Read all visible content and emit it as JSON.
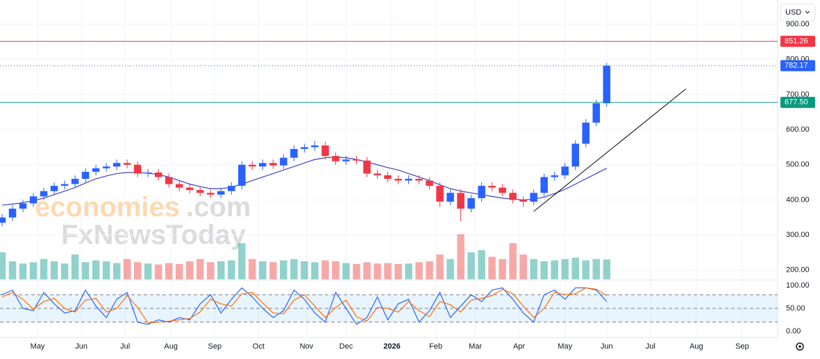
{
  "currency": "USD",
  "watermark": [
    "economies",
    ".com",
    "FxNewsToday"
  ],
  "chart_data": {
    "type": "candlestick",
    "xlim": [
      0,
      373
    ],
    "xticks": [
      {
        "value": 18,
        "label": "May"
      },
      {
        "value": 39,
        "label": "Jun"
      },
      {
        "value": 60,
        "label": "Jul"
      },
      {
        "value": 82,
        "label": "Aug"
      },
      {
        "value": 103,
        "label": "Sep"
      },
      {
        "value": 124,
        "label": "Oct"
      },
      {
        "value": 147,
        "label": "Nov"
      },
      {
        "value": 166,
        "label": "Dec"
      },
      {
        "value": 188,
        "label": "2026"
      },
      {
        "value": 209,
        "label": "Feb"
      },
      {
        "value": 228,
        "label": "Mar"
      },
      {
        "value": 249,
        "label": "Apr"
      },
      {
        "value": 271,
        "label": "May"
      },
      {
        "value": 291,
        "label": "Jun"
      },
      {
        "value": 312,
        "label": "Jul"
      },
      {
        "value": 334,
        "label": "Aug"
      },
      {
        "value": 356,
        "label": "Sep"
      }
    ],
    "ylim": [
      174,
      969
    ],
    "yticks": [
      {
        "value": 900,
        "label": "900.00"
      },
      {
        "value": 800,
        "label": "800.00"
      },
      {
        "value": 700,
        "label": "700.00"
      },
      {
        "value": 600,
        "label": "600.00"
      },
      {
        "value": 500,
        "label": "500.00"
      },
      {
        "value": 400,
        "label": "400.00"
      },
      {
        "value": 300,
        "label": "300.00"
      },
      {
        "value": 200,
        "label": "200.00"
      }
    ],
    "up_color": "#2962ff",
    "down_color": "#f23645",
    "candles": {
      "x": [
        1,
        6,
        11,
        16,
        21,
        26,
        31,
        36,
        41,
        46,
        51,
        56,
        61,
        66,
        71,
        76,
        81,
        86,
        91,
        96,
        101,
        106,
        111,
        116,
        121,
        126,
        131,
        136,
        141,
        146,
        151,
        156,
        161,
        166,
        171,
        176,
        181,
        186,
        191,
        196,
        201,
        206,
        211,
        216,
        221,
        226,
        231,
        236,
        241,
        246,
        251,
        256,
        261,
        266,
        271,
        276,
        281,
        286,
        291
      ],
      "open": [
        335,
        350,
        375,
        390,
        410,
        425,
        440,
        445,
        460,
        480,
        490,
        495,
        505,
        500,
        475,
        478,
        465,
        445,
        435,
        428,
        420,
        415,
        425,
        440,
        500,
        495,
        505,
        498,
        520,
        545,
        550,
        555,
        525,
        510,
        515,
        512,
        475,
        470,
        460,
        455,
        460,
        455,
        440,
        395,
        420,
        375,
        405,
        440,
        435,
        420,
        400,
        395,
        420,
        465,
        470,
        495,
        560,
        620,
        675
      ],
      "high": [
        360,
        385,
        400,
        420,
        435,
        450,
        455,
        470,
        490,
        500,
        505,
        515,
        515,
        510,
        488,
        488,
        475,
        455,
        445,
        438,
        430,
        435,
        450,
        510,
        510,
        515,
        515,
        530,
        555,
        560,
        568,
        565,
        535,
        525,
        525,
        522,
        485,
        480,
        470,
        470,
        470,
        465,
        450,
        430,
        430,
        415,
        450,
        450,
        445,
        430,
        410,
        430,
        475,
        480,
        505,
        570,
        630,
        685,
        790
      ],
      "low": [
        325,
        340,
        365,
        380,
        400,
        415,
        430,
        435,
        450,
        470,
        480,
        485,
        490,
        465,
        465,
        455,
        435,
        425,
        418,
        410,
        405,
        405,
        415,
        430,
        485,
        485,
        488,
        488,
        510,
        535,
        540,
        515,
        500,
        500,
        502,
        465,
        460,
        450,
        445,
        445,
        445,
        430,
        380,
        385,
        340,
        365,
        395,
        425,
        410,
        390,
        380,
        385,
        410,
        455,
        460,
        485,
        550,
        610,
        665
      ],
      "close": [
        350,
        375,
        390,
        410,
        425,
        440,
        445,
        460,
        480,
        490,
        495,
        505,
        500,
        475,
        478,
        465,
        445,
        435,
        428,
        420,
        415,
        425,
        440,
        500,
        495,
        505,
        498,
        520,
        545,
        550,
        555,
        525,
        510,
        515,
        512,
        475,
        470,
        460,
        455,
        460,
        455,
        440,
        395,
        420,
        375,
        405,
        440,
        435,
        420,
        400,
        395,
        420,
        465,
        470,
        495,
        560,
        620,
        675,
        782
      ],
      "volume": [
        60,
        40,
        35,
        38,
        45,
        40,
        35,
        55,
        38,
        42,
        40,
        36,
        45,
        38,
        35,
        33,
        36,
        34,
        40,
        45,
        38,
        40,
        42,
        80,
        45,
        40,
        38,
        42,
        45,
        40,
        38,
        42,
        40,
        36,
        34,
        38,
        35,
        36,
        34,
        35,
        38,
        40,
        55,
        45,
        100,
        60,
        65,
        50,
        45,
        80,
        55,
        45,
        40,
        42,
        45,
        48,
        42,
        45,
        44
      ]
    },
    "moving_average": {
      "color": "#3f3fbf",
      "values": [
        385,
        388,
        392,
        398,
        405,
        415,
        425,
        435,
        448,
        460,
        468,
        475,
        478,
        478,
        476,
        472,
        465,
        455,
        445,
        438,
        432,
        432,
        436,
        445,
        455,
        465,
        475,
        485,
        495,
        505,
        515,
        520,
        522,
        520,
        515,
        508,
        500,
        492,
        485,
        475,
        465,
        455,
        443,
        432,
        425,
        420,
        415,
        410,
        405,
        402,
        400,
        402,
        408,
        418,
        430,
        445,
        460,
        475,
        490
      ]
    },
    "levels": [
      {
        "value": 851.26,
        "label": "851.26",
        "color": "#f23645",
        "dotted": false
      },
      {
        "value": 782.17,
        "label": "782.17",
        "color": "#2962ff",
        "dotted": true
      },
      {
        "value": 677.5,
        "label": "677.50",
        "color": "#089981",
        "dotted": false
      }
    ],
    "trendline": {
      "x": [
        256,
        329
      ],
      "y": [
        367,
        716
      ],
      "color": "#000000"
    },
    "stochastic": {
      "ylim": [
        -10.6,
        110.6
      ],
      "yticks": [
        {
          "value": 100,
          "label": "100.00"
        },
        {
          "value": 50,
          "label": "50.00"
        },
        {
          "value": 0,
          "label": "0.00"
        }
      ],
      "bands": [
        80,
        50,
        20
      ],
      "series": [
        {
          "color": "#2962ff",
          "values": [
            80,
            90,
            50,
            45,
            85,
            60,
            40,
            45,
            90,
            55,
            30,
            70,
            85,
            20,
            15,
            25,
            20,
            30,
            25,
            60,
            80,
            40,
            70,
            95,
            75,
            50,
            30,
            45,
            90,
            70,
            40,
            20,
            85,
            50,
            15,
            30,
            75,
            25,
            60,
            70,
            20,
            45,
            85,
            30,
            55,
            80,
            65,
            90,
            95,
            70,
            40,
            20,
            80,
            90,
            70,
            95,
            95,
            90,
            65
          ]
        },
        {
          "color": "#ff6d00",
          "values": [
            75,
            85,
            70,
            48,
            65,
            72,
            50,
            42,
            68,
            72,
            42,
            50,
            78,
            52,
            18,
            20,
            22,
            25,
            28,
            42,
            70,
            60,
            55,
            82,
            85,
            62,
            40,
            38,
            68,
            80,
            55,
            30,
            52,
            68,
            32,
            22,
            52,
            50,
            42,
            65,
            45,
            32,
            65,
            58,
            42,
            68,
            72,
            78,
            92,
            82,
            55,
            30,
            50,
            85,
            80,
            82,
            95,
            92,
            78
          ]
        }
      ]
    }
  }
}
